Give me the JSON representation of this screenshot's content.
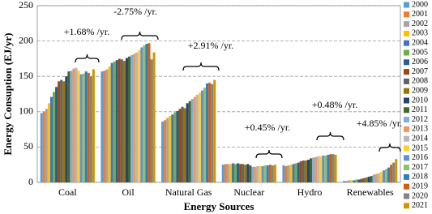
{
  "chart_data": {
    "type": "bar",
    "xlabel": "Energy Sources",
    "ylabel": "Energy Consuption (EJ/yr)",
    "categories": [
      "Coal",
      "Oil",
      "Natural Gas",
      "Nuclear",
      "Hydro",
      "Renewables"
    ],
    "ylim": [
      0,
      250
    ],
    "yticks": [
      0,
      50,
      100,
      150,
      200,
      250
    ],
    "grid": true,
    "annotations": [
      "+1.68% /yr.",
      "-2.75% /yr.",
      "+2.91% /yr.",
      "+0.45% /yr.",
      "+0.48% /yr.",
      "+4.85% /yr."
    ],
    "series": [
      {
        "name": "2000",
        "color": "#5b9bd5",
        "values": [
          98,
          157,
          86,
          25,
          24,
          2
        ]
      },
      {
        "name": "2001",
        "color": "#ed7d31",
        "values": [
          100,
          158,
          88,
          26,
          23,
          2
        ]
      },
      {
        "name": "2002",
        "color": "#a5a5a5",
        "values": [
          104,
          160,
          91,
          26,
          24,
          3
        ]
      },
      {
        "name": "2003",
        "color": "#ffc000",
        "values": [
          112,
          164,
          94,
          26,
          25,
          3
        ]
      },
      {
        "name": "2004",
        "color": "#4472c4",
        "values": [
          121,
          169,
          96,
          27,
          26,
          3
        ]
      },
      {
        "name": "2005",
        "color": "#70ad47",
        "values": [
          128,
          171,
          99,
          26,
          27,
          4
        ]
      },
      {
        "name": "2006",
        "color": "#255e91",
        "values": [
          135,
          173,
          101,
          27,
          28,
          4
        ]
      },
      {
        "name": "2007",
        "color": "#9e480e",
        "values": [
          143,
          175,
          104,
          26,
          30,
          5
        ]
      },
      {
        "name": "2008",
        "color": "#636363",
        "values": [
          145,
          174,
          107,
          26,
          31,
          6
        ]
      },
      {
        "name": "2009",
        "color": "#997300",
        "values": [
          143,
          172,
          105,
          25,
          31,
          7
        ]
      },
      {
        "name": "2010",
        "color": "#264478",
        "values": [
          150,
          176,
          112,
          26,
          32,
          8
        ]
      },
      {
        "name": "2011",
        "color": "#43682b",
        "values": [
          157,
          178,
          115,
          24,
          34,
          9
        ]
      },
      {
        "name": "2012",
        "color": "#7cafdd",
        "values": [
          158,
          180,
          118,
          22,
          35,
          11
        ]
      },
      {
        "name": "2013",
        "color": "#f1975a",
        "values": [
          161,
          182,
          121,
          22,
          36,
          12
        ]
      },
      {
        "name": "2014",
        "color": "#b7b7b7",
        "values": [
          162,
          184,
          124,
          23,
          37,
          13
        ]
      },
      {
        "name": "2015",
        "color": "#ffcd33",
        "values": [
          158,
          187,
          127,
          23,
          37,
          15
        ]
      },
      {
        "name": "2016",
        "color": "#698ed0",
        "values": [
          153,
          191,
          130,
          23,
          38,
          17
        ]
      },
      {
        "name": "2017",
        "color": "#8cc168",
        "values": [
          154,
          194,
          134,
          24,
          38,
          19
        ]
      },
      {
        "name": "2018",
        "color": "#327dc2",
        "values": [
          157,
          196,
          140,
          24,
          39,
          21
        ]
      },
      {
        "name": "2019",
        "color": "#d26012",
        "values": [
          155,
          197,
          141,
          25,
          40,
          25
        ]
      },
      {
        "name": "2020",
        "color": "#848484",
        "values": [
          150,
          174,
          139,
          24,
          40,
          28
        ]
      },
      {
        "name": "2021",
        "color": "#cc9a00",
        "values": [
          160,
          184,
          145,
          25,
          39,
          33
        ]
      }
    ]
  }
}
